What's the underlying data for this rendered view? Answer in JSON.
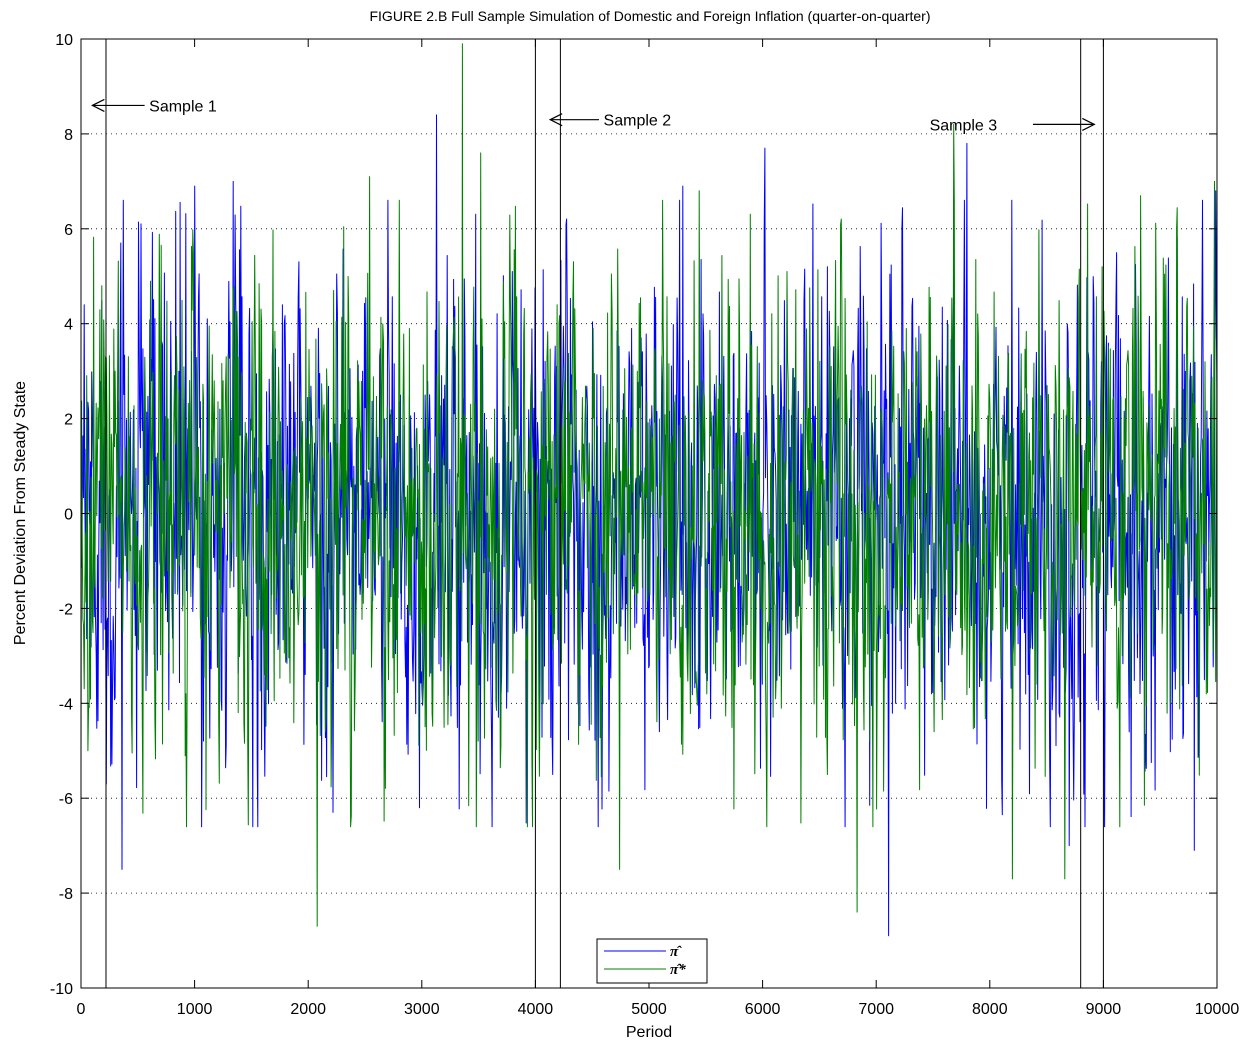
{
  "chart_data": {
    "type": "line",
    "title": "FIGURE 2.B Full Sample Simulation of Domestic and Foreign Inflation (quarter-on-quarter)",
    "xlabel": "Period",
    "ylabel": "Percent Deviation From Steady State",
    "xlim": [
      0,
      10000
    ],
    "ylim": [
      -10,
      10
    ],
    "xticks": [
      "0",
      "1000",
      "2000",
      "3000",
      "4000",
      "5000",
      "6000",
      "7000",
      "8000",
      "9000",
      "10000"
    ],
    "yticks": [
      "-10",
      "-8",
      "-6",
      "-4",
      "-2",
      "0",
      "2",
      "4",
      "6",
      "8",
      "10"
    ],
    "grid": "dotted horizontal",
    "legend_position": "bottom-center",
    "series": [
      {
        "name": "π̂",
        "color": "#0000ff",
        "peaks": [
          {
            "x": 30,
            "y": 4.4
          },
          {
            "x": 220,
            "y": -5.7
          },
          {
            "x": 360,
            "y": -7.5
          },
          {
            "x": 1000,
            "y": 6.9
          },
          {
            "x": 1340,
            "y": 7.0
          },
          {
            "x": 2220,
            "y": -6.3
          },
          {
            "x": 2980,
            "y": -6.2
          },
          {
            "x": 3130,
            "y": 8.4
          },
          {
            "x": 5300,
            "y": 6.9
          },
          {
            "x": 6020,
            "y": 7.7
          },
          {
            "x": 7110,
            "y": -8.9
          },
          {
            "x": 7800,
            "y": 7.8
          },
          {
            "x": 8700,
            "y": -7.0
          },
          {
            "x": 9800,
            "y": -7.1
          },
          {
            "x": 9990,
            "y": 6.8
          }
        ],
        "std": 2.5,
        "n_points": 1800
      },
      {
        "name": "π̂*",
        "color": "#008000",
        "peaks": [
          {
            "x": 60,
            "y": -5.0
          },
          {
            "x": 2080,
            "y": -8.7
          },
          {
            "x": 2540,
            "y": 7.1
          },
          {
            "x": 3360,
            "y": 9.9
          },
          {
            "x": 3520,
            "y": 7.6
          },
          {
            "x": 4740,
            "y": -7.5
          },
          {
            "x": 5440,
            "y": 6.8
          },
          {
            "x": 6830,
            "y": -8.4
          },
          {
            "x": 7680,
            "y": 8.2
          },
          {
            "x": 8200,
            "y": -7.7
          },
          {
            "x": 8660,
            "y": -7.7
          },
          {
            "x": 9330,
            "y": 6.7
          },
          {
            "x": 9980,
            "y": 7.0
          }
        ],
        "std": 2.5,
        "n_points": 1800
      }
    ],
    "vertical_lines": [
      220,
      4000,
      4220,
      8800,
      9000
    ],
    "annotations": [
      {
        "text": "Sample 1",
        "arrow": "left",
        "arrow_head_x": 100,
        "arrow_tail_x": 560,
        "y": 8.6,
        "text_x": 600
      },
      {
        "text": "Sample 2",
        "arrow": "left",
        "arrow_head_x": 4130,
        "arrow_tail_x": 4560,
        "y": 8.3,
        "text_x": 4600
      },
      {
        "text": "Sample 3",
        "arrow": "right",
        "arrow_head_x": 8920,
        "arrow_tail_x": 8380,
        "y": 8.2,
        "text_x": 7470
      }
    ]
  }
}
